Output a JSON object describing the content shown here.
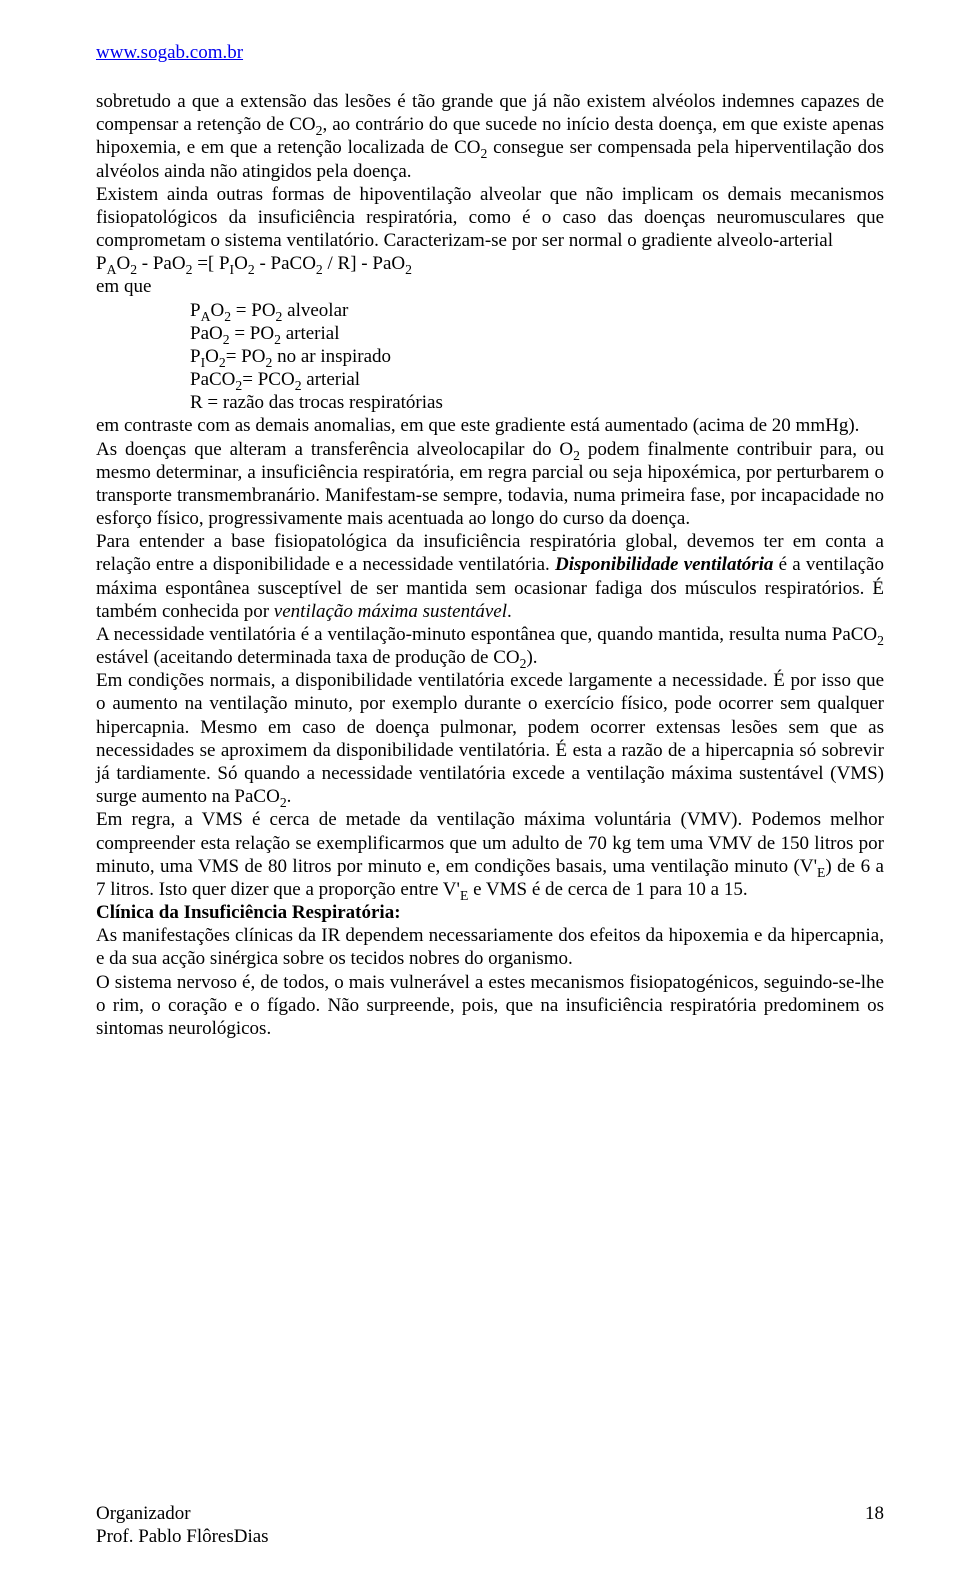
{
  "header": {
    "url": "www.sogab.com.br"
  },
  "body": {
    "p1a": "sobretudo a que a extensão das lesões é tão grande que já não existem alvéolos indemnes capazes de compensar a retenção de CO",
    "p1b": ", ao contrário do que sucede no início desta doença, em que existe apenas hipoxemia, e em que a retenção localizada de CO",
    "p1c": " consegue ser compensada pela hiperventilação dos alvéolos ainda não atingidos pela doença.",
    "p2": "Existem ainda outras formas de hipoventilação alveolar que não implicam os demais mecanismos fisiopatológicos da insuficiência respiratória, como é o caso das doenças neuromusculares que comprometam o sistema ventilatório. Caracterizam-se por ser normal o gradiente alveolo-arterial",
    "eq1": "PAO2 - PaO2 =[ PIO2 - PaCO2 / R] - PaO2",
    "emque": "em que",
    "eq2": "PAO2 = PO2 alveolar",
    "eq3": "PaO2 = PO2 arterial",
    "eq4": "PIO2= PO2 no ar inspirado",
    "eq5": "PaCO2= PCO2 arterial",
    "eq6": "R = razão das trocas respiratórias",
    "p3": "em contraste com as demais anomalias, em que este gradiente está aumentado (acima de 20 mmHg).",
    "p4a": "As doenças que alteram a transferência alveolocapilar do O",
    "p4b": " podem finalmente contribuir para, ou mesmo determinar, a insuficiência respiratória, em regra parcial ou seja hipoxémica, por perturbarem o transporte transmembranário. Manifestam-se sempre, todavia, numa primeira fase, por incapacidade no esforço físico, progressivamente mais acentuada ao longo do curso da doença.",
    "p5a": "Para entender a base fisiopatológica da insuficiência respiratória global, devemos ter em conta a relação entre a disponibilidade e a necessidade ventilatória. ",
    "p5b": "Disponibilidade ventilatória",
    "p5c": " é a ventilação máxima espontânea susceptível de ser mantida sem ocasionar fadiga dos músculos respiratórios. É também conhecida por ",
    "p5d": "ventilação máxima sustentável",
    "p6a": "A necessidade ventilatória é a ventilação-minuto espontânea que, quando mantida, resulta numa PaCO",
    "p6b": " estável (aceitando determinada taxa de produção de CO",
    "p6c": ").",
    "p7a": "Em condições normais, a disponibilidade ventilatória excede largamente a necessidade. É por isso que o aumento na ventilação minuto, por exemplo durante o exercício físico, pode ocorrer sem qualquer hipercapnia. Mesmo em caso de doença pulmonar, podem ocorrer extensas lesões sem que as necessidades se aproximem da disponibilidade ventilatória. É esta a razão de a hipercapnia só sobrevir já tardiamente. Só quando a necessidade ventilatória excede a ventilação máxima sustentável (VMS) surge aumento na PaCO",
    "p7b": ".",
    "p8a": "Em regra, a VMS é cerca de metade da ventilação máxima voluntária (VMV). Podemos melhor compreender esta relação se exemplificarmos que um adulto de 70 kg tem uma VMV de 150 litros por minuto, uma VMS de 80 litros por minuto e, em condições basais, uma ventilação minuto (V'",
    "p8b": ") de 6 a 7 litros. Isto quer dizer que a proporção entre V'",
    "p8c": " e VMS é de cerca de 1 para 10 a 15.",
    "h1": "Clínica da Insuficiência Respiratória:",
    "p9": "As manifestações clínicas da IR dependem necessariamente dos efeitos da hipoxemia e da hipercapnia, e da sua acção sinérgica sobre os tecidos nobres do organismo.",
    "p10": "O sistema nervoso  é, de todos, o mais vulnerável a estes mecanismos fisiopatogénicos, seguindo-se-lhe o rim, o coração e o fígado. Não surpreende, pois, que na insuficiência respiratória predominem os sintomas neurológicos."
  },
  "footer": {
    "left1": "Organizador",
    "left2": "Prof. Pablo FlôresDias",
    "page": "18"
  }
}
